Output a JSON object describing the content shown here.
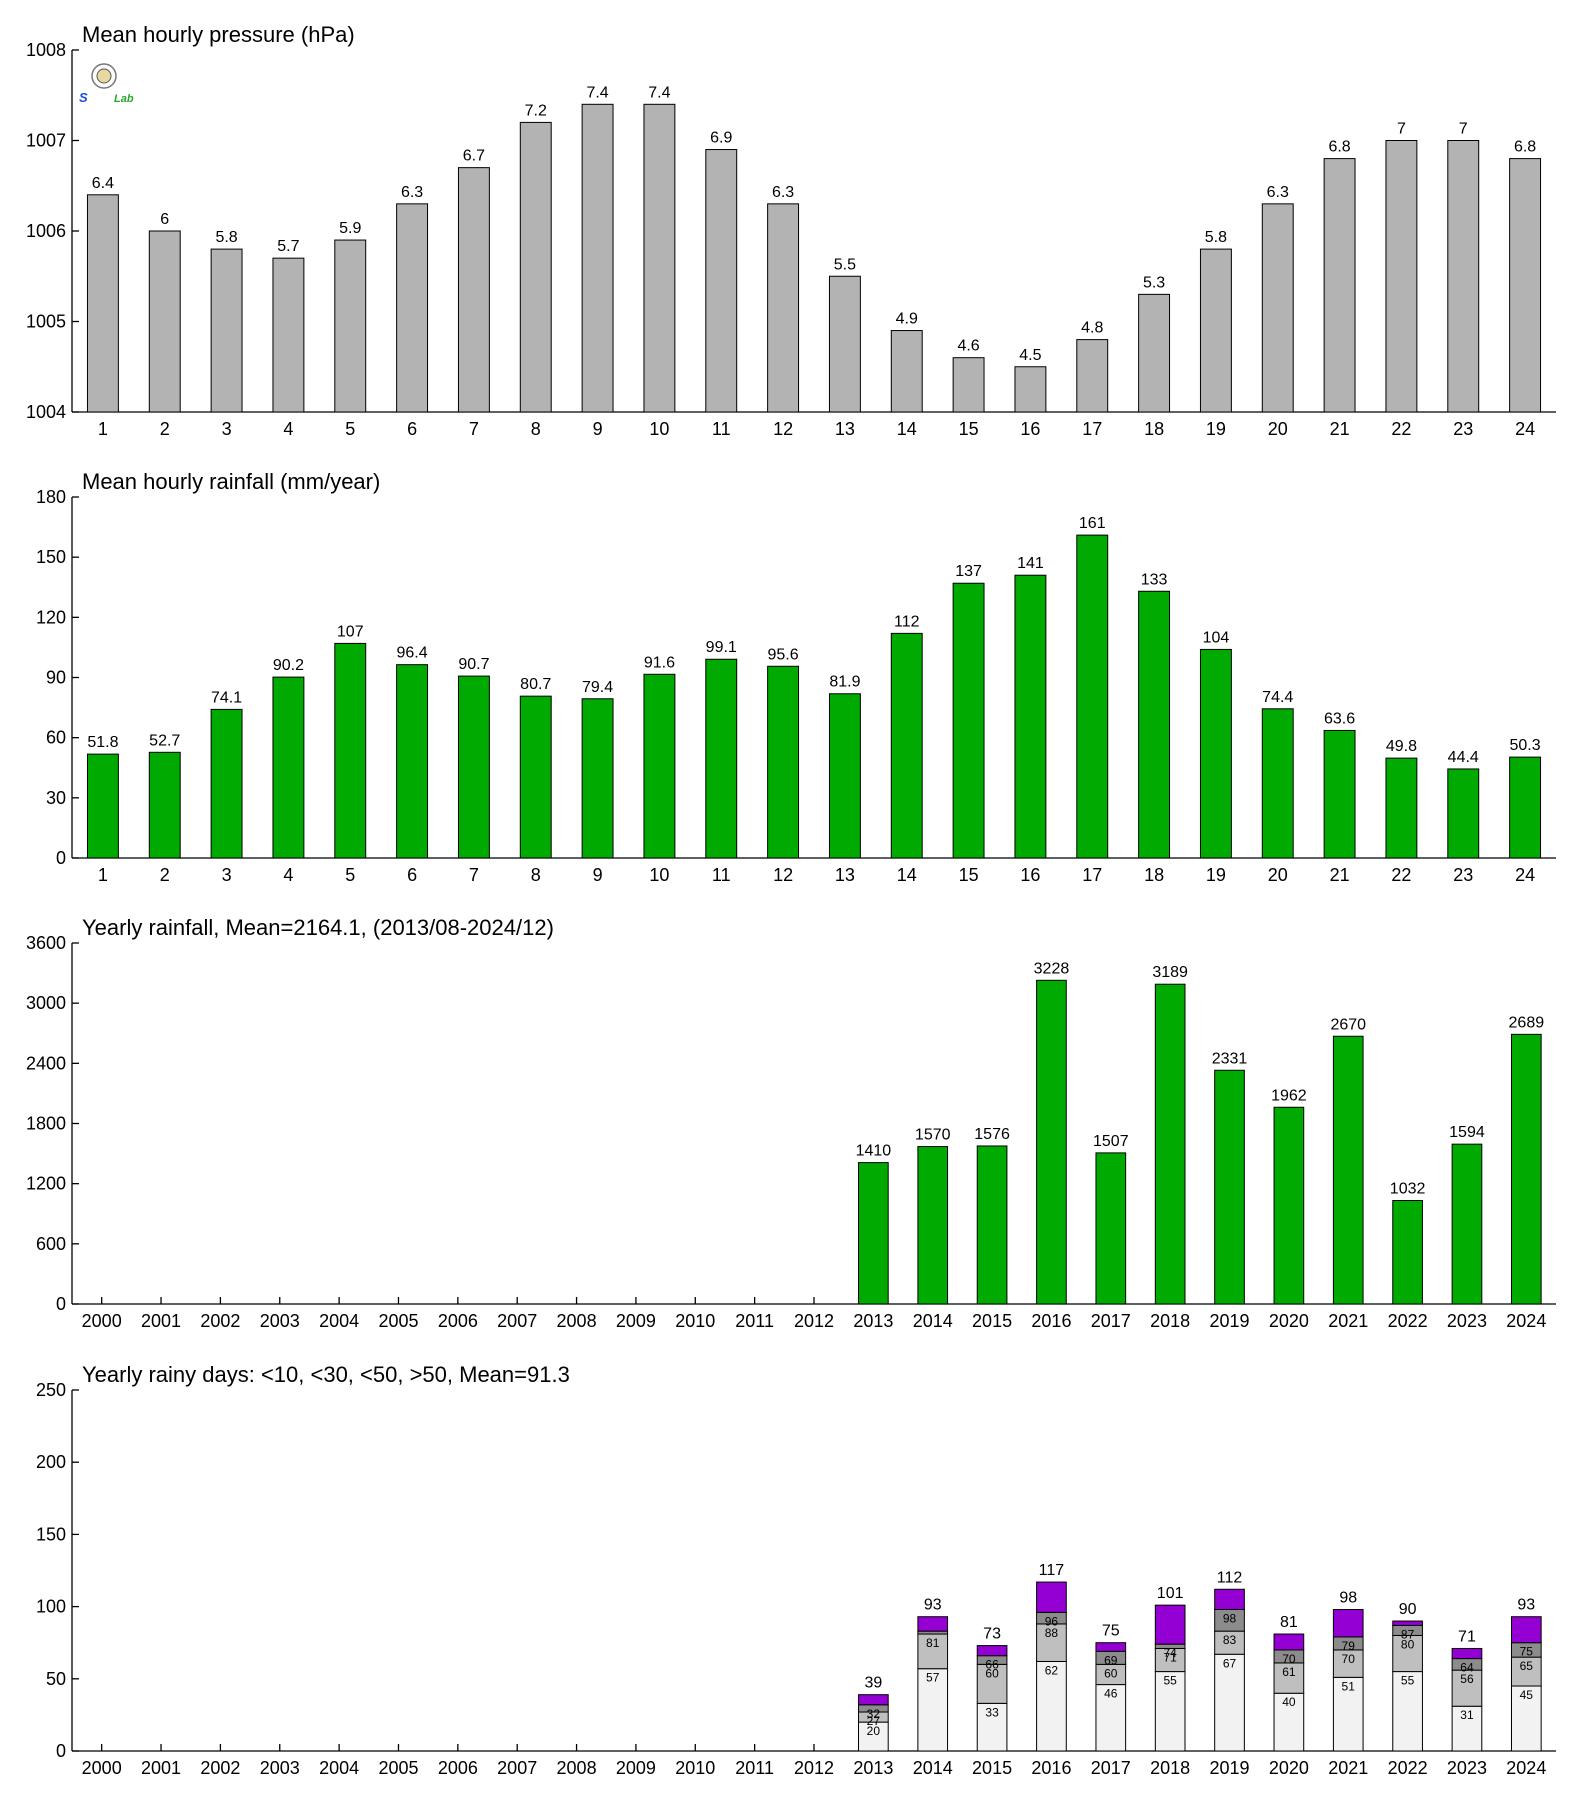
{
  "chart_data": [
    {
      "type": "bar",
      "title": "Mean hourly pressure (hPa)",
      "categories": [
        "1",
        "2",
        "3",
        "4",
        "5",
        "6",
        "7",
        "8",
        "9",
        "10",
        "11",
        "12",
        "13",
        "14",
        "15",
        "16",
        "17",
        "18",
        "19",
        "20",
        "21",
        "22",
        "23",
        "24"
      ],
      "values": [
        1006.4,
        1006,
        1005.8,
        1005.7,
        1005.9,
        1006.3,
        1006.7,
        1007.2,
        1007.4,
        1007.4,
        1006.9,
        1006.3,
        1005.5,
        1004.9,
        1004.6,
        1004.5,
        1004.8,
        1005.3,
        1005.8,
        1006.3,
        1006.8,
        1007,
        1007,
        1006.8
      ],
      "value_labels": [
        "6.4",
        "6",
        "5.8",
        "5.7",
        "5.9",
        "6.3",
        "6.7",
        "7.2",
        "7.4",
        "7.4",
        "6.9",
        "6.3",
        "5.5",
        "4.9",
        "4.6",
        "4.5",
        "4.8",
        "5.3",
        "5.8",
        "6.3",
        "6.8",
        "7",
        "7",
        "6.8"
      ],
      "ylim": [
        1004,
        1008
      ],
      "yticks": [
        "1004",
        "1005",
        "1006",
        "1007",
        "1008"
      ],
      "bar_color": "#b3b3b3"
    },
    {
      "type": "bar",
      "title": "Mean hourly rainfall (mm/year)",
      "categories": [
        "1",
        "2",
        "3",
        "4",
        "5",
        "6",
        "7",
        "8",
        "9",
        "10",
        "11",
        "12",
        "13",
        "14",
        "15",
        "16",
        "17",
        "18",
        "19",
        "20",
        "21",
        "22",
        "23",
        "24"
      ],
      "values": [
        51.8,
        52.7,
        74.1,
        90.2,
        107,
        96.4,
        90.7,
        80.7,
        79.4,
        91.6,
        99.1,
        95.6,
        81.9,
        112,
        137,
        141,
        161,
        133,
        104,
        74.4,
        63.6,
        49.8,
        44.4,
        50.3
      ],
      "value_labels": [
        "51.8",
        "52.7",
        "74.1",
        "90.2",
        "107",
        "96.4",
        "90.7",
        "80.7",
        "79.4",
        "91.6",
        "99.1",
        "95.6",
        "81.9",
        "112",
        "137",
        "141",
        "161",
        "133",
        "104",
        "74.4",
        "63.6",
        "49.8",
        "44.4",
        "50.3"
      ],
      "ylim": [
        0,
        180
      ],
      "yticks": [
        "0",
        "30",
        "60",
        "90",
        "120",
        "150",
        "180"
      ],
      "bar_color": "#00aa00"
    },
    {
      "type": "bar",
      "title": "Yearly rainfall, Mean=2164.1, (2013/08-2024/12)",
      "categories": [
        "2000",
        "2001",
        "2002",
        "2003",
        "2004",
        "2005",
        "2006",
        "2007",
        "2008",
        "2009",
        "2010",
        "2011",
        "2012",
        "2013",
        "2014",
        "2015",
        "2016",
        "2017",
        "2018",
        "2019",
        "2020",
        "2021",
        "2022",
        "2023",
        "2024"
      ],
      "values": [
        null,
        null,
        null,
        null,
        null,
        null,
        null,
        null,
        null,
        null,
        null,
        null,
        null,
        1410,
        1570,
        1576,
        3228,
        1507,
        3189,
        2331,
        1962,
        2670,
        1032,
        1594,
        2689
      ],
      "value_labels": [
        "",
        "",
        "",
        "",
        "",
        "",
        "",
        "",
        "",
        "",
        "",
        "",
        "",
        "1410",
        "1570",
        "1576",
        "3228",
        "1507",
        "3189",
        "2331",
        "1962",
        "2670",
        "1032",
        "1594",
        "2689"
      ],
      "ylim": [
        0,
        3600
      ],
      "yticks": [
        "0",
        "600",
        "1200",
        "1800",
        "2400",
        "3000",
        "3600"
      ],
      "bar_color": "#00aa00"
    },
    {
      "type": "bar",
      "stacked": true,
      "title": "Yearly rainy days: <10, <30, <50, >50, Mean=91.3",
      "categories": [
        "2000",
        "2001",
        "2002",
        "2003",
        "2004",
        "2005",
        "2006",
        "2007",
        "2008",
        "2009",
        "2010",
        "2011",
        "2012",
        "2013",
        "2014",
        "2015",
        "2016",
        "2017",
        "2018",
        "2019",
        "2020",
        "2021",
        "2022",
        "2023",
        "2024"
      ],
      "series_colors": [
        "#f2f2f2",
        "#bfbfbf",
        "#8c8c8c",
        "#9400d3"
      ],
      "cumulative": [
        null,
        null,
        null,
        null,
        null,
        null,
        null,
        null,
        null,
        null,
        null,
        null,
        null,
        [
          20,
          27,
          32,
          39
        ],
        [
          57,
          81,
          83,
          93
        ],
        [
          33,
          60,
          66,
          73
        ],
        [
          62,
          88,
          96,
          117
        ],
        [
          46,
          60,
          69,
          75
        ],
        [
          55,
          71,
          74,
          101
        ],
        [
          67,
          83,
          98,
          112
        ],
        [
          40,
          61,
          70,
          81
        ],
        [
          51,
          70,
          79,
          98
        ],
        [
          55,
          80,
          87,
          90
        ],
        [
          31,
          56,
          64,
          71
        ],
        [
          45,
          65,
          75,
          93
        ]
      ],
      "segment_labels": [
        null,
        null,
        null,
        null,
        null,
        null,
        null,
        null,
        null,
        null,
        null,
        null,
        null,
        [
          "20",
          "27",
          "32"
        ],
        [
          "57",
          "81",
          ""
        ],
        [
          "33",
          "60",
          "66"
        ],
        [
          "62",
          "88",
          "96"
        ],
        [
          "46",
          "60",
          "69"
        ],
        [
          "55",
          "71",
          "74"
        ],
        [
          "67",
          "83",
          "98"
        ],
        [
          "40",
          "61",
          "70"
        ],
        [
          "51",
          "70",
          "79"
        ],
        [
          "55",
          "80",
          "87"
        ],
        [
          "31",
          "56",
          "64"
        ],
        [
          "45",
          "65",
          "75"
        ]
      ],
      "value_labels": [
        "",
        "",
        "",
        "",
        "",
        "",
        "",
        "",
        "",
        "",
        "",
        "",
        "",
        "39",
        "93",
        "73",
        "117",
        "75",
        "101",
        "112",
        "81",
        "98",
        "90",
        "71",
        "93"
      ],
      "ylim": [
        0,
        250
      ],
      "yticks": [
        "0",
        "50",
        "100",
        "150",
        "200",
        "250"
      ]
    }
  ],
  "logo": {
    "text_left": "S",
    "text_right": "Lab"
  }
}
